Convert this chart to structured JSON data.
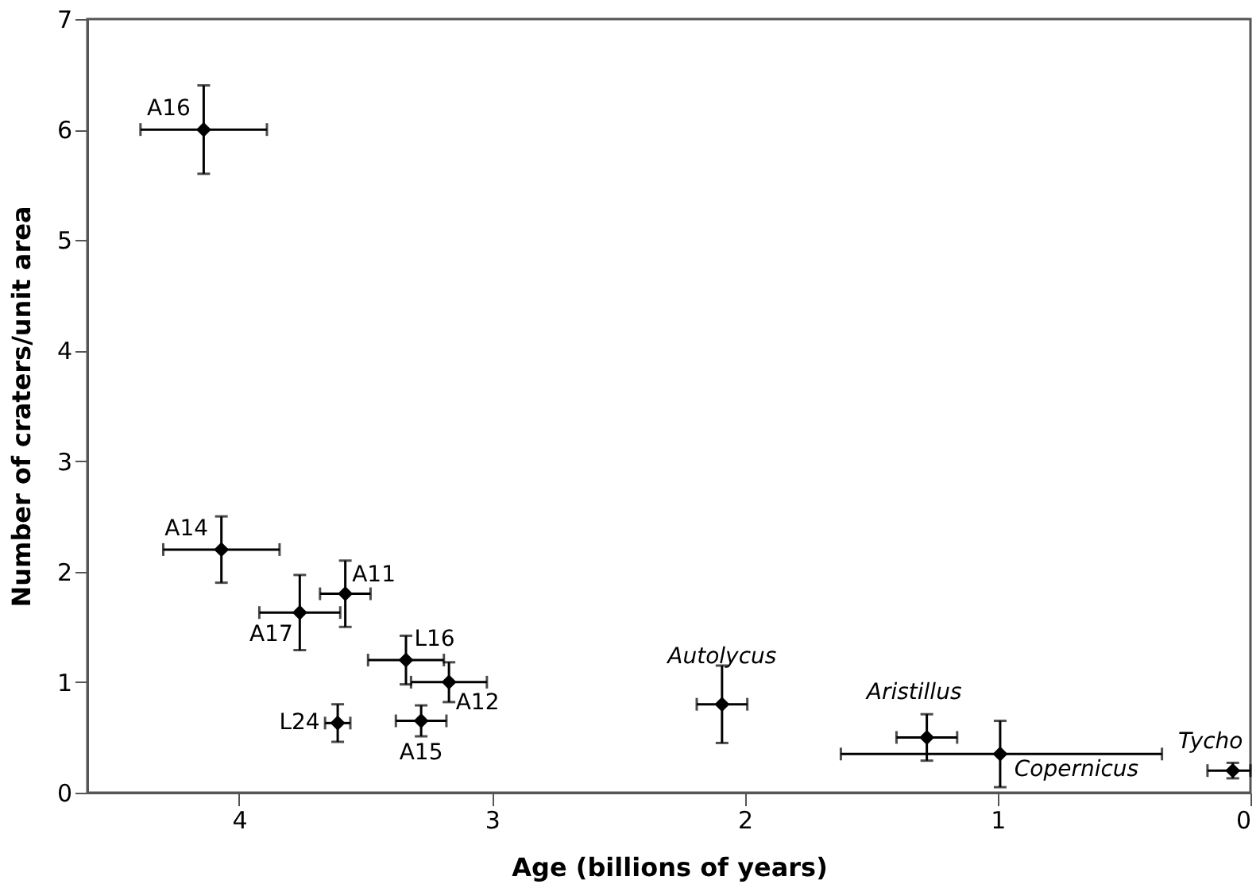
{
  "chart_data": {
    "type": "scatter",
    "xlabel": "Age (billions of years)",
    "ylabel": "Number of craters/unit area",
    "x": [
      4.14,
      4.07,
      3.76,
      3.58,
      3.34,
      3.17,
      3.61,
      3.28,
      2.09,
      1.28,
      0.99,
      0.07
    ],
    "series": [
      {
        "color": "#000000",
        "values": [
          6.0,
          2.2,
          1.63,
          1.8,
          1.2,
          1.0,
          0.63,
          0.65,
          0.8,
          0.5,
          0.35,
          0.2
        ],
        "errors": [
          0.4,
          0.3,
          0.34,
          0.3,
          0.22,
          0.18,
          0.17,
          0.14,
          0.35,
          0.21,
          0.3,
          0.07
        ],
        "xerrors": [
          0.25,
          0.23,
          0.16,
          0.1,
          0.15,
          0.15,
          0.05,
          0.1,
          0.1,
          0.12,
          [
            0.35,
            1.62
          ],
          [
            0.0,
            0.17
          ]
        ]
      }
    ],
    "annotations": [
      {
        "text": "A16",
        "x": 4.14,
        "y": 6.0
      },
      {
        "text": "A14",
        "x": 4.07,
        "y": 2.2
      },
      {
        "text": "A17",
        "x": 3.76,
        "y": 1.63
      },
      {
        "text": "A11",
        "x": 3.58,
        "y": 1.8
      },
      {
        "text": "L16",
        "x": 3.34,
        "y": 1.2
      },
      {
        "text": "A12",
        "x": 3.17,
        "y": 1.0
      },
      {
        "text": "L24",
        "x": 3.61,
        "y": 0.63
      },
      {
        "text": "A15",
        "x": 3.28,
        "y": 0.65
      },
      {
        "text": "Autolycus",
        "x": 2.09,
        "y": 0.8
      },
      {
        "text": "Aristillus",
        "x": 1.28,
        "y": 0.5
      },
      {
        "text": "Copernicus",
        "x": 0.99,
        "y": 0.35
      },
      {
        "text": "Tycho",
        "x": 0.07,
        "y": 0.2
      }
    ],
    "xlim": [
      4.6,
      0
    ],
    "ylim": [
      0,
      7
    ],
    "xticks": [
      4,
      3,
      2,
      1,
      0
    ],
    "yticks": [
      0,
      1,
      2,
      3,
      4,
      5,
      6,
      7
    ],
    "marker": "diamond",
    "grid": false
  }
}
